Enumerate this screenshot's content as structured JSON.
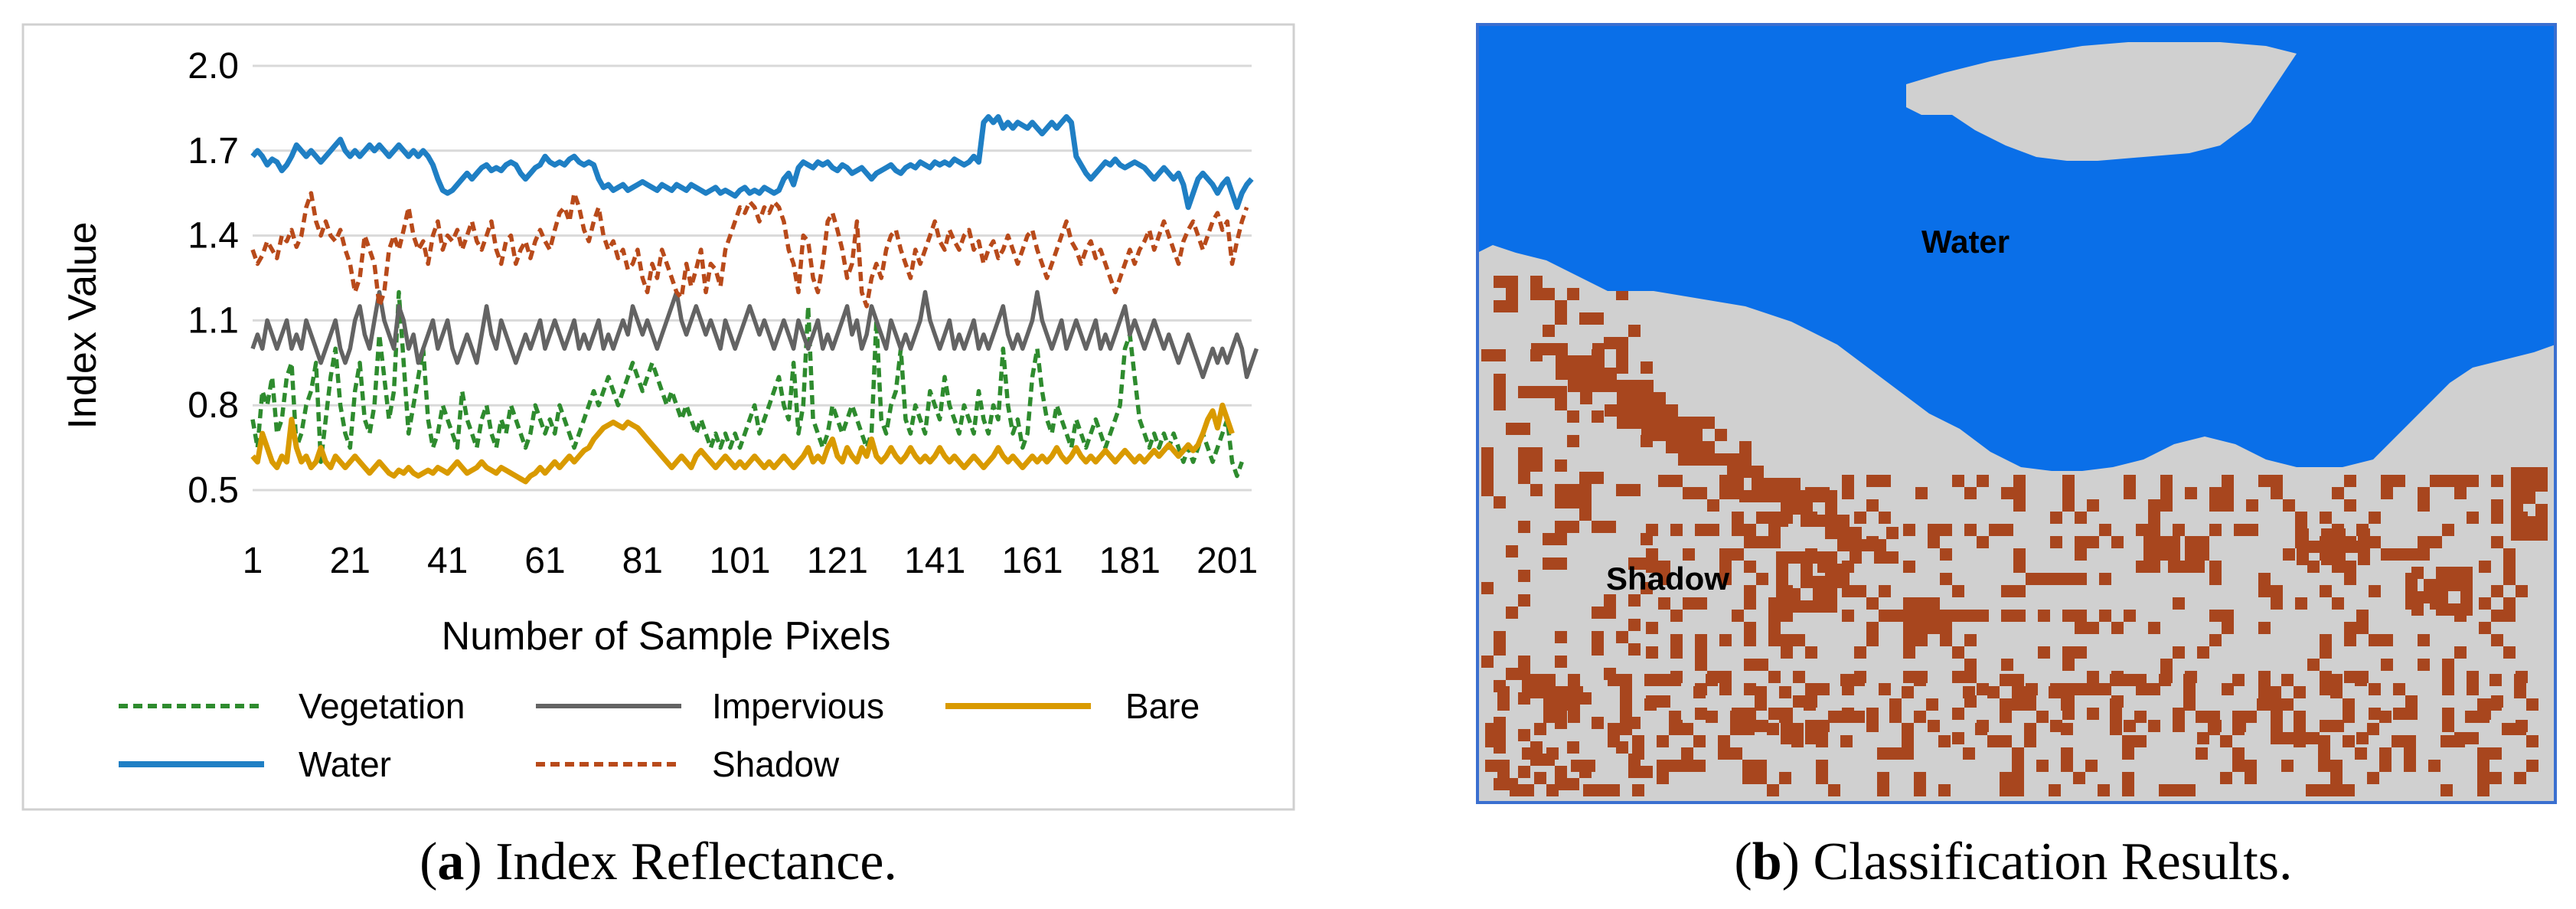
{
  "panels": {
    "a": {
      "caption_letter": "a",
      "caption_text": ") Index Reflectance."
    },
    "b": {
      "caption_letter": "b",
      "caption_text": ") Classification Results."
    }
  },
  "chart_data": {
    "type": "line",
    "title": "",
    "xlabel": "Number of Sample Pixels",
    "ylabel": "Index Value",
    "x_start": 1,
    "x_end": 206,
    "xticks": [
      1,
      21,
      41,
      61,
      81,
      101,
      121,
      141,
      161,
      181,
      201
    ],
    "yticks": [
      0.5,
      0.8,
      1.1,
      1.4,
      1.7,
      2.0
    ],
    "ytick_labels": [
      "0.5",
      "0.8",
      "1.1",
      "1.4",
      "1.7",
      "2.0"
    ],
    "ylim": [
      0.5,
      2.0
    ],
    "grid": true,
    "legend_position": "bottom",
    "series": [
      {
        "name": "Vegetation",
        "color": "#2e8b2e",
        "style": "dashed",
        "values": [
          0.75,
          0.65,
          0.85,
          0.8,
          0.9,
          0.7,
          0.75,
          0.9,
          0.95,
          0.65,
          0.7,
          0.8,
          0.85,
          0.95,
          0.6,
          0.75,
          0.9,
          1.0,
          0.8,
          0.7,
          0.65,
          0.85,
          0.95,
          0.75,
          0.7,
          0.8,
          1.05,
          0.9,
          0.75,
          0.85,
          1.2,
          0.95,
          0.7,
          0.8,
          0.9,
          1.0,
          0.75,
          0.65,
          0.7,
          0.8,
          0.75,
          0.7,
          0.65,
          0.85,
          0.75,
          0.7,
          0.65,
          0.75,
          0.8,
          0.7,
          0.65,
          0.75,
          0.7,
          0.8,
          0.75,
          0.7,
          0.65,
          0.7,
          0.8,
          0.75,
          0.7,
          0.75,
          0.7,
          0.8,
          0.75,
          0.7,
          0.65,
          0.7,
          0.75,
          0.8,
          0.85,
          0.8,
          0.85,
          0.9,
          0.85,
          0.8,
          0.85,
          0.9,
          0.95,
          0.9,
          0.85,
          0.9,
          0.95,
          0.9,
          0.85,
          0.8,
          0.85,
          0.8,
          0.75,
          0.8,
          0.75,
          0.7,
          0.75,
          0.7,
          0.65,
          0.7,
          0.65,
          0.7,
          0.65,
          0.7,
          0.65,
          0.7,
          0.75,
          0.8,
          0.7,
          0.75,
          0.8,
          0.85,
          0.9,
          0.8,
          0.75,
          0.95,
          0.7,
          0.8,
          1.15,
          0.75,
          0.7,
          0.65,
          0.7,
          0.8,
          0.75,
          0.7,
          0.75,
          0.8,
          0.75,
          0.7,
          0.65,
          0.7,
          1.1,
          0.75,
          0.7,
          0.8,
          0.85,
          1.0,
          0.75,
          0.7,
          0.8,
          0.75,
          0.7,
          0.85,
          0.8,
          0.75,
          0.9,
          0.8,
          0.75,
          0.7,
          0.8,
          0.75,
          0.7,
          0.85,
          0.75,
          0.7,
          0.8,
          0.75,
          1.0,
          0.8,
          0.7,
          0.75,
          0.65,
          0.7,
          0.9,
          1.0,
          0.85,
          0.75,
          0.7,
          0.8,
          0.75,
          0.7,
          0.65,
          0.75,
          0.7,
          0.65,
          0.7,
          0.75,
          0.7,
          0.65,
          0.7,
          0.75,
          0.8,
          1.0,
          1.05,
          0.9,
          0.75,
          0.7,
          0.65,
          0.7,
          0.65,
          0.7,
          0.65,
          0.7,
          0.65,
          0.6,
          0.65,
          0.6,
          0.65,
          0.7,
          0.65,
          0.6,
          0.65,
          0.7,
          0.75,
          0.6,
          0.55,
          0.6
        ]
      },
      {
        "name": "Impervious",
        "color": "#636363",
        "style": "solid",
        "values": [
          1.0,
          1.05,
          1.0,
          1.1,
          1.05,
          1.0,
          1.05,
          1.1,
          1.0,
          1.05,
          1.0,
          1.1,
          1.05,
          1.0,
          0.95,
          1.0,
          1.05,
          1.1,
          1.0,
          0.95,
          1.0,
          1.1,
          1.15,
          1.05,
          1.0,
          1.1,
          1.2,
          1.1,
          1.05,
          1.0,
          1.15,
          1.1,
          1.0,
          1.05,
          0.95,
          1.0,
          1.05,
          1.1,
          1.0,
          1.05,
          1.1,
          1.0,
          0.95,
          1.0,
          1.05,
          1.0,
          0.95,
          1.05,
          1.15,
          1.05,
          1.0,
          1.1,
          1.05,
          1.0,
          0.95,
          1.0,
          1.05,
          1.0,
          1.05,
          1.1,
          1.0,
          1.05,
          1.1,
          1.05,
          1.0,
          1.05,
          1.1,
          1.0,
          1.05,
          1.0,
          1.05,
          1.1,
          1.0,
          1.05,
          1.0,
          1.05,
          1.1,
          1.05,
          1.15,
          1.1,
          1.05,
          1.1,
          1.05,
          1.0,
          1.05,
          1.1,
          1.15,
          1.2,
          1.1,
          1.05,
          1.1,
          1.15,
          1.1,
          1.05,
          1.1,
          1.05,
          1.0,
          1.1,
          1.05,
          1.0,
          1.05,
          1.1,
          1.15,
          1.1,
          1.05,
          1.1,
          1.05,
          1.0,
          1.05,
          1.1,
          1.05,
          1.0,
          1.1,
          1.05,
          1.0,
          1.05,
          1.1,
          1.0,
          1.05,
          1.0,
          1.05,
          1.1,
          1.15,
          1.05,
          1.1,
          1.0,
          1.05,
          1.15,
          1.1,
          1.05,
          1.0,
          1.1,
          1.05,
          1.0,
          1.05,
          1.0,
          1.05,
          1.1,
          1.2,
          1.1,
          1.05,
          1.0,
          1.05,
          1.1,
          1.0,
          1.05,
          1.0,
          1.05,
          1.1,
          1.0,
          1.05,
          1.0,
          1.05,
          1.1,
          1.15,
          1.05,
          1.0,
          1.05,
          1.0,
          1.05,
          1.1,
          1.2,
          1.1,
          1.05,
          1.0,
          1.05,
          1.1,
          1.0,
          1.05,
          1.1,
          1.05,
          1.0,
          1.05,
          1.1,
          1.0,
          1.05,
          1.0,
          1.05,
          1.1,
          1.15,
          1.05,
          1.1,
          1.05,
          1.0,
          1.05,
          1.1,
          1.05,
          1.0,
          1.05,
          1.0,
          0.95,
          1.0,
          1.05,
          1.0,
          0.95,
          0.9,
          0.95,
          1.0,
          0.95,
          1.0,
          0.95,
          1.0,
          1.05,
          1.0,
          0.9,
          0.95,
          1.0
        ]
      },
      {
        "name": "Bare",
        "color": "#d99a00",
        "style": "solid",
        "values": [
          0.62,
          0.6,
          0.7,
          0.65,
          0.6,
          0.58,
          0.62,
          0.6,
          0.75,
          0.65,
          0.6,
          0.62,
          0.58,
          0.6,
          0.65,
          0.6,
          0.58,
          0.62,
          0.6,
          0.58,
          0.6,
          0.62,
          0.6,
          0.58,
          0.56,
          0.58,
          0.6,
          0.58,
          0.56,
          0.55,
          0.57,
          0.56,
          0.58,
          0.56,
          0.55,
          0.56,
          0.57,
          0.56,
          0.58,
          0.57,
          0.56,
          0.58,
          0.6,
          0.58,
          0.56,
          0.57,
          0.58,
          0.6,
          0.58,
          0.57,
          0.56,
          0.58,
          0.57,
          0.56,
          0.55,
          0.54,
          0.53,
          0.55,
          0.56,
          0.58,
          0.56,
          0.58,
          0.6,
          0.58,
          0.6,
          0.62,
          0.6,
          0.62,
          0.64,
          0.65,
          0.68,
          0.7,
          0.72,
          0.73,
          0.74,
          0.73,
          0.72,
          0.74,
          0.73,
          0.72,
          0.7,
          0.68,
          0.66,
          0.64,
          0.62,
          0.6,
          0.58,
          0.6,
          0.62,
          0.6,
          0.58,
          0.62,
          0.64,
          0.62,
          0.6,
          0.58,
          0.6,
          0.62,
          0.6,
          0.58,
          0.6,
          0.58,
          0.6,
          0.62,
          0.6,
          0.58,
          0.6,
          0.58,
          0.6,
          0.62,
          0.6,
          0.58,
          0.6,
          0.62,
          0.65,
          0.6,
          0.62,
          0.6,
          0.65,
          0.68,
          0.62,
          0.6,
          0.65,
          0.62,
          0.6,
          0.65,
          0.62,
          0.68,
          0.62,
          0.6,
          0.62,
          0.65,
          0.62,
          0.6,
          0.62,
          0.65,
          0.62,
          0.6,
          0.62,
          0.6,
          0.62,
          0.65,
          0.62,
          0.6,
          0.62,
          0.6,
          0.58,
          0.6,
          0.62,
          0.6,
          0.58,
          0.6,
          0.62,
          0.65,
          0.62,
          0.6,
          0.62,
          0.6,
          0.58,
          0.6,
          0.62,
          0.6,
          0.62,
          0.6,
          0.62,
          0.65,
          0.62,
          0.6,
          0.62,
          0.65,
          0.62,
          0.6,
          0.62,
          0.6,
          0.62,
          0.64,
          0.62,
          0.6,
          0.62,
          0.64,
          0.62,
          0.6,
          0.62,
          0.6,
          0.62,
          0.64,
          0.62,
          0.64,
          0.66,
          0.64,
          0.62,
          0.64,
          0.66,
          0.64,
          0.66,
          0.7,
          0.75,
          0.78,
          0.72,
          0.8,
          0.75,
          0.7
        ]
      },
      {
        "name": "Water",
        "color": "#1f7fc4",
        "style": "solid",
        "values": [
          1.68,
          1.7,
          1.68,
          1.65,
          1.67,
          1.66,
          1.63,
          1.65,
          1.68,
          1.72,
          1.7,
          1.68,
          1.7,
          1.68,
          1.66,
          1.68,
          1.7,
          1.72,
          1.74,
          1.7,
          1.68,
          1.7,
          1.68,
          1.7,
          1.72,
          1.7,
          1.72,
          1.7,
          1.68,
          1.7,
          1.72,
          1.7,
          1.68,
          1.7,
          1.68,
          1.7,
          1.68,
          1.65,
          1.6,
          1.56,
          1.55,
          1.56,
          1.58,
          1.6,
          1.62,
          1.6,
          1.62,
          1.64,
          1.65,
          1.63,
          1.64,
          1.63,
          1.65,
          1.66,
          1.65,
          1.62,
          1.6,
          1.62,
          1.64,
          1.65,
          1.68,
          1.66,
          1.65,
          1.66,
          1.65,
          1.67,
          1.68,
          1.66,
          1.65,
          1.66,
          1.65,
          1.6,
          1.57,
          1.58,
          1.56,
          1.57,
          1.58,
          1.56,
          1.57,
          1.58,
          1.59,
          1.58,
          1.57,
          1.56,
          1.58,
          1.57,
          1.56,
          1.58,
          1.57,
          1.56,
          1.58,
          1.57,
          1.56,
          1.55,
          1.56,
          1.57,
          1.55,
          1.56,
          1.55,
          1.54,
          1.56,
          1.57,
          1.55,
          1.56,
          1.55,
          1.57,
          1.56,
          1.55,
          1.56,
          1.6,
          1.62,
          1.58,
          1.64,
          1.66,
          1.65,
          1.64,
          1.66,
          1.65,
          1.66,
          1.64,
          1.63,
          1.65,
          1.64,
          1.62,
          1.63,
          1.64,
          1.62,
          1.6,
          1.62,
          1.63,
          1.64,
          1.65,
          1.63,
          1.62,
          1.64,
          1.65,
          1.64,
          1.66,
          1.65,
          1.64,
          1.66,
          1.65,
          1.66,
          1.65,
          1.67,
          1.66,
          1.65,
          1.66,
          1.68,
          1.66,
          1.8,
          1.82,
          1.8,
          1.82,
          1.78,
          1.8,
          1.78,
          1.8,
          1.79,
          1.78,
          1.8,
          1.78,
          1.76,
          1.78,
          1.8,
          1.78,
          1.8,
          1.82,
          1.8,
          1.68,
          1.65,
          1.62,
          1.6,
          1.62,
          1.64,
          1.66,
          1.65,
          1.67,
          1.65,
          1.64,
          1.65,
          1.66,
          1.65,
          1.64,
          1.62,
          1.6,
          1.62,
          1.64,
          1.62,
          1.6,
          1.62,
          1.58,
          1.5,
          1.55,
          1.6,
          1.62,
          1.6,
          1.58,
          1.55,
          1.58,
          1.6,
          1.55,
          1.5,
          1.55,
          1.58,
          1.6
        ]
      },
      {
        "name": "Shadow",
        "color": "#b84a1a",
        "style": "dashed",
        "values": [
          1.35,
          1.3,
          1.33,
          1.38,
          1.35,
          1.32,
          1.4,
          1.38,
          1.42,
          1.36,
          1.4,
          1.5,
          1.55,
          1.45,
          1.4,
          1.45,
          1.4,
          1.38,
          1.42,
          1.35,
          1.3,
          1.2,
          1.25,
          1.4,
          1.35,
          1.3,
          1.15,
          1.2,
          1.35,
          1.4,
          1.35,
          1.42,
          1.5,
          1.4,
          1.35,
          1.38,
          1.3,
          1.4,
          1.45,
          1.35,
          1.4,
          1.38,
          1.42,
          1.35,
          1.4,
          1.45,
          1.38,
          1.35,
          1.4,
          1.45,
          1.35,
          1.3,
          1.38,
          1.4,
          1.3,
          1.35,
          1.38,
          1.32,
          1.38,
          1.42,
          1.38,
          1.35,
          1.42,
          1.48,
          1.5,
          1.45,
          1.55,
          1.5,
          1.42,
          1.38,
          1.45,
          1.5,
          1.4,
          1.35,
          1.38,
          1.32,
          1.35,
          1.28,
          1.3,
          1.35,
          1.25,
          1.2,
          1.3,
          1.25,
          1.35,
          1.3,
          1.25,
          1.2,
          1.18,
          1.3,
          1.22,
          1.28,
          1.35,
          1.2,
          1.3,
          1.28,
          1.22,
          1.35,
          1.4,
          1.45,
          1.5,
          1.48,
          1.52,
          1.5,
          1.45,
          1.5,
          1.48,
          1.52,
          1.5,
          1.45,
          1.35,
          1.3,
          1.2,
          1.4,
          1.38,
          1.25,
          1.2,
          1.3,
          1.45,
          1.48,
          1.42,
          1.35,
          1.25,
          1.3,
          1.45,
          1.2,
          1.15,
          1.25,
          1.3,
          1.25,
          1.35,
          1.4,
          1.42,
          1.35,
          1.3,
          1.25,
          1.35,
          1.3,
          1.35,
          1.4,
          1.45,
          1.38,
          1.35,
          1.42,
          1.38,
          1.35,
          1.4,
          1.42,
          1.35,
          1.38,
          1.3,
          1.35,
          1.38,
          1.32,
          1.35,
          1.4,
          1.35,
          1.3,
          1.35,
          1.4,
          1.42,
          1.35,
          1.3,
          1.25,
          1.3,
          1.35,
          1.4,
          1.45,
          1.38,
          1.35,
          1.3,
          1.35,
          1.38,
          1.32,
          1.35,
          1.3,
          1.25,
          1.2,
          1.25,
          1.3,
          1.35,
          1.3,
          1.35,
          1.38,
          1.42,
          1.35,
          1.4,
          1.45,
          1.4,
          1.35,
          1.3,
          1.38,
          1.42,
          1.45,
          1.4,
          1.35,
          1.4,
          1.45,
          1.48,
          1.42,
          1.45,
          1.3,
          1.38,
          1.45,
          1.5
        ]
      }
    ]
  },
  "map": {
    "labels": {
      "water": "Water",
      "shadow": "Shadow"
    },
    "colors": {
      "water": "#0a6fe8",
      "ground": "#d0d0d0",
      "shadow": "#a8461e",
      "frame": "#3a6fd0"
    },
    "shadow_density_hint": "patchy, concentrated along left edge and lower band"
  }
}
